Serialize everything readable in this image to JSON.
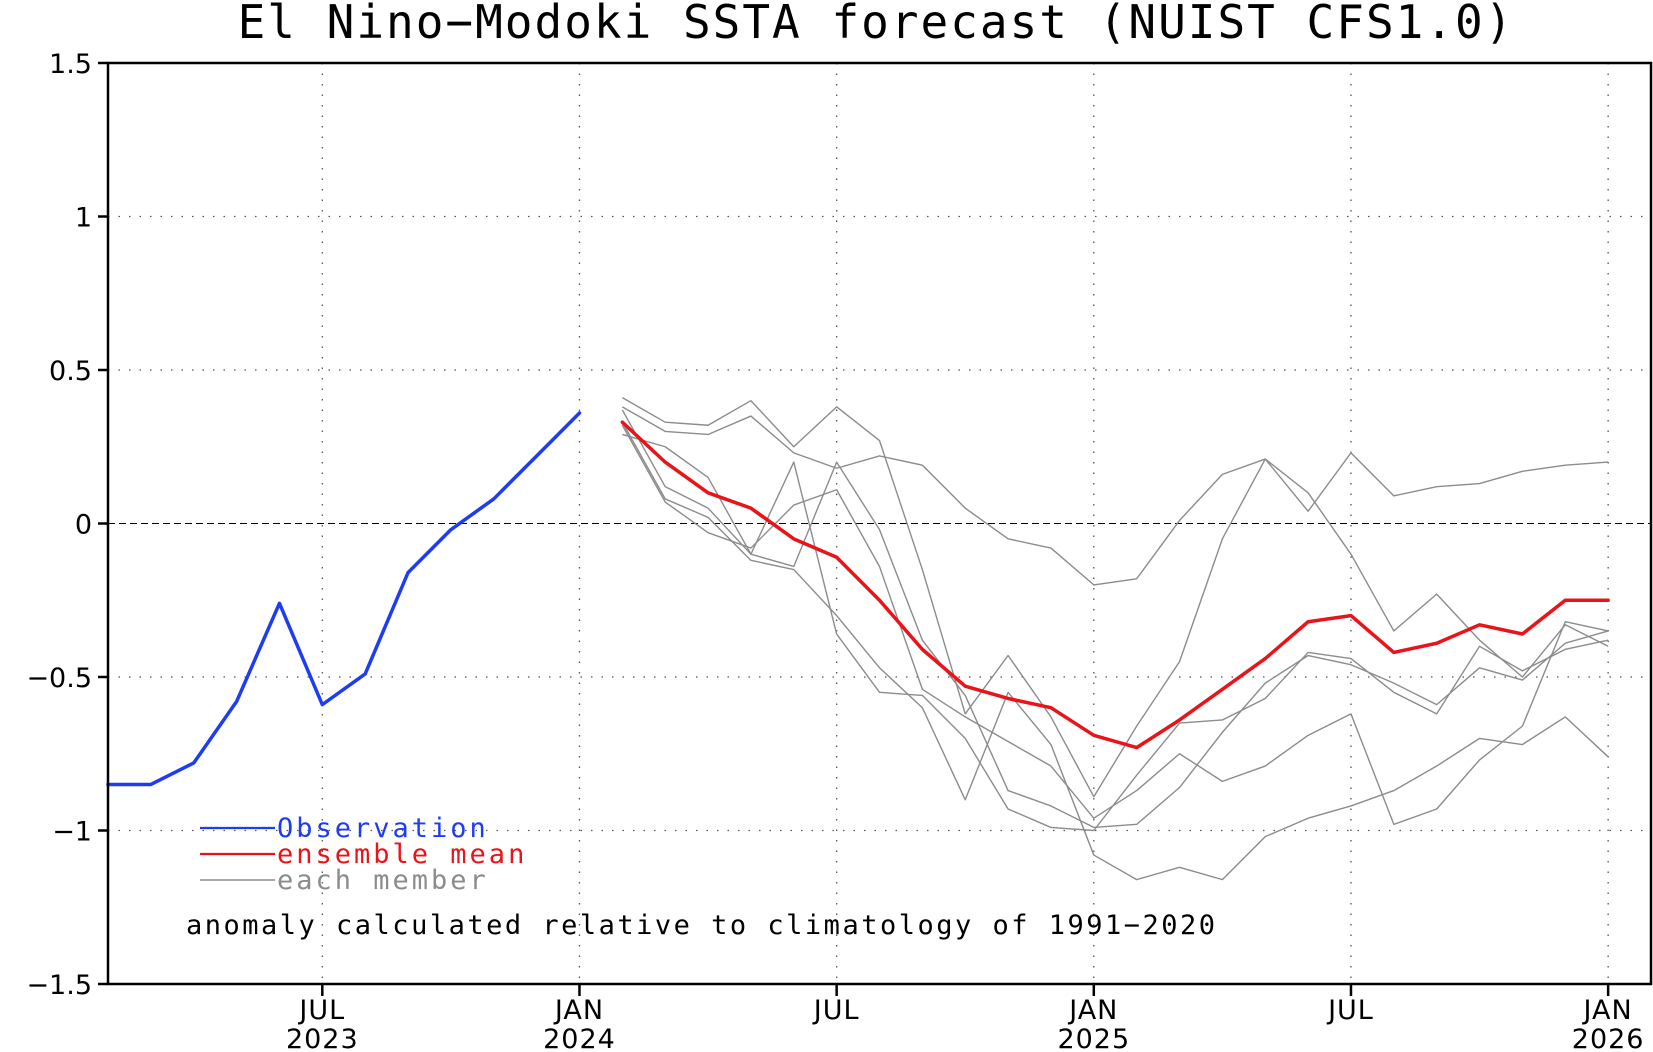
{
  "chart_data": {
    "type": "line",
    "title": "El Nino−Modoki SSTA forecast (NUIST CFS1.0)",
    "xlabel": "",
    "ylabel": "",
    "ylim": [
      -1.5,
      1.5
    ],
    "yticks": [
      1.5,
      1,
      0.5,
      0,
      -0.5,
      -1,
      -1.5
    ],
    "ytick_labels": [
      "1.5",
      "1",
      "0.5",
      "0",
      "−0.5",
      "−1",
      "−1.5"
    ],
    "xlim": [
      "2023-02",
      "2026-02"
    ],
    "xticks": [
      {
        "date": "2023-07",
        "month": "JUL",
        "year": "2023"
      },
      {
        "date": "2024-01",
        "month": "JAN",
        "year": "2024"
      },
      {
        "date": "2024-07",
        "month": "JUL",
        "year": ""
      },
      {
        "date": "2025-01",
        "month": "JAN",
        "year": "2025"
      },
      {
        "date": "2025-07",
        "month": "JUL",
        "year": ""
      },
      {
        "date": "2026-01",
        "month": "JAN",
        "year": "2026"
      }
    ],
    "grid": true,
    "zero_line": true,
    "legend_position": "bottom-left",
    "legend": [
      {
        "label": "Observation",
        "color": "#1e3cf0"
      },
      {
        "label": "ensemble mean",
        "color": "#e8141a"
      },
      {
        "label": "each member",
        "color": "#8c8c8c"
      }
    ],
    "annotation": "anomaly calculated relative to climatology of 1991−2020",
    "colors": {
      "observation": "#1e3cf0",
      "ensemble_mean": "#e8141a",
      "member": "#8c8c8c",
      "axis": "#000000",
      "grid": "#555555"
    },
    "series": [
      {
        "name": "Observation",
        "color": "#1e3cf0",
        "x": [
          "2023-02",
          "2023-03",
          "2023-04",
          "2023-05",
          "2023-06",
          "2023-07",
          "2023-08",
          "2023-09",
          "2023-10",
          "2023-11",
          "2023-12",
          "2024-01"
        ],
        "values": [
          -0.85,
          -0.85,
          -0.78,
          -0.58,
          -0.26,
          -0.59,
          -0.49,
          -0.16,
          -0.02,
          0.08,
          0.22,
          0.36
        ]
      },
      {
        "name": "ensemble mean",
        "color": "#e8141a",
        "x": [
          "2024-02",
          "2024-03",
          "2024-04",
          "2024-05",
          "2024-06",
          "2024-07",
          "2024-08",
          "2024-09",
          "2024-10",
          "2024-11",
          "2024-12",
          "2025-01",
          "2025-02",
          "2025-03",
          "2025-04",
          "2025-05",
          "2025-06",
          "2025-07",
          "2025-08",
          "2025-09",
          "2025-10",
          "2025-11",
          "2025-12",
          "2026-01"
        ],
        "values": [
          0.33,
          0.2,
          0.1,
          0.05,
          -0.05,
          -0.11,
          -0.25,
          -0.41,
          -0.53,
          -0.57,
          -0.6,
          -0.69,
          -0.73,
          -0.64,
          -0.54,
          -0.44,
          -0.32,
          -0.3,
          -0.42,
          -0.39,
          -0.33,
          -0.36,
          -0.25,
          -0.25
        ]
      }
    ],
    "members": {
      "x": [
        "2024-02",
        "2024-03",
        "2024-04",
        "2024-05",
        "2024-06",
        "2024-07",
        "2024-08",
        "2024-09",
        "2024-10",
        "2024-11",
        "2024-12",
        "2025-01",
        "2025-02",
        "2025-03",
        "2025-04",
        "2025-05",
        "2025-06",
        "2025-07",
        "2025-08",
        "2025-09",
        "2025-10",
        "2025-11",
        "2025-12",
        "2026-01"
      ],
      "values": [
        [
          0.41,
          0.33,
          0.32,
          0.4,
          0.25,
          0.38,
          0.27,
          -0.15,
          -0.62,
          -0.43,
          -0.63,
          -0.89,
          -0.66,
          -0.45,
          -0.05,
          0.21,
          0.1,
          -0.1,
          -0.35,
          -0.23,
          -0.38,
          -0.5,
          -0.33,
          -0.4
        ],
        [
          0.38,
          0.3,
          0.29,
          0.35,
          0.23,
          0.18,
          0.22,
          0.19,
          0.05,
          -0.05,
          -0.08,
          -0.2,
          -0.18,
          0.01,
          0.16,
          0.21,
          0.04,
          0.23,
          0.09,
          0.12,
          0.13,
          0.17,
          0.19,
          0.2
        ],
        [
          0.29,
          0.25,
          0.15,
          -0.1,
          -0.14,
          0.2,
          -0.02,
          -0.38,
          -0.56,
          -0.87,
          -0.92,
          -0.99,
          -0.98,
          -0.86,
          -0.68,
          -0.52,
          -0.43,
          -0.46,
          -0.52,
          -0.59,
          -0.47,
          -0.51,
          -0.39,
          -0.35
        ],
        [
          0.32,
          0.07,
          -0.03,
          -0.08,
          0.06,
          0.11,
          -0.14,
          -0.54,
          -0.63,
          -0.71,
          -0.79,
          -0.96,
          -0.87,
          -0.75,
          -0.84,
          -0.79,
          -0.69,
          -0.62,
          -0.98,
          -0.93,
          -0.77,
          -0.66,
          -0.32,
          -0.35
        ],
        [
          0.37,
          0.12,
          0.05,
          -0.1,
          0.2,
          -0.36,
          -0.55,
          -0.56,
          -0.7,
          -0.93,
          -0.99,
          -1.0,
          -0.82,
          -0.65,
          -0.64,
          -0.57,
          -0.42,
          -0.44,
          -0.55,
          -0.62,
          -0.4,
          -0.48,
          -0.41,
          -0.38
        ],
        [
          0.33,
          0.08,
          0.02,
          -0.12,
          -0.15,
          -0.3,
          -0.47,
          -0.6,
          -0.9,
          -0.55,
          -0.72,
          -1.08,
          -1.16,
          -1.12,
          -1.16,
          -1.02,
          -0.96,
          -0.92,
          -0.87,
          -0.79,
          -0.7,
          -0.72,
          -0.63,
          -0.76
        ]
      ]
    }
  }
}
